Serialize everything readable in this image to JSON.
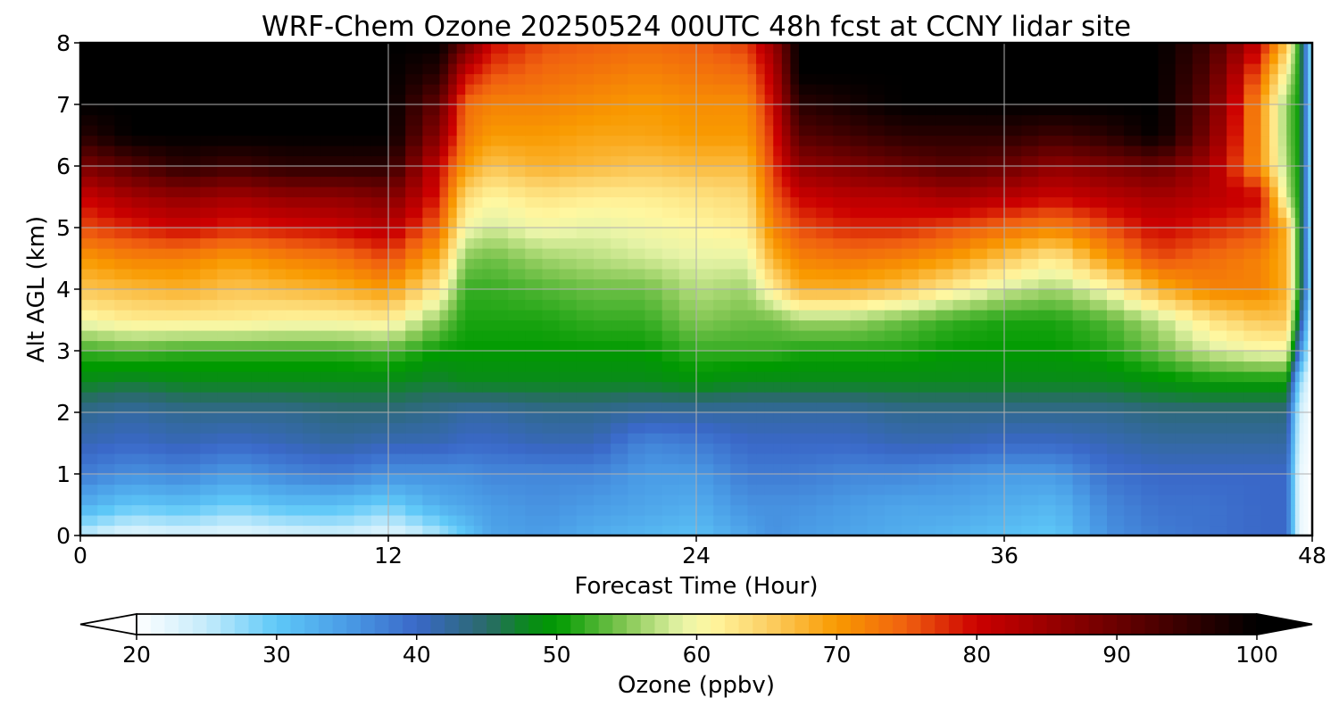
{
  "chart_data": {
    "type": "heatmap",
    "title": "WRF-Chem Ozone  20250524 00UTC 48h fcst at CCNY lidar site",
    "xlabel": "Forecast Time (Hour)",
    "ylabel": "Alt AGL (km)",
    "xlim": [
      0,
      48
    ],
    "ylim": [
      0,
      8
    ],
    "xticks": [
      0,
      12,
      24,
      36,
      48
    ],
    "yticks": [
      0,
      1,
      2,
      3,
      4,
      5,
      6,
      7,
      8
    ],
    "grid": true,
    "colorbar": {
      "label": "Ozone  (ppbv)",
      "orientation": "horizontal",
      "placement": "bottom",
      "range": [
        20,
        100
      ],
      "ticks": [
        20,
        30,
        40,
        50,
        60,
        70,
        80,
        90,
        100
      ],
      "extend": "both",
      "under_color": "#ffffff",
      "over_color": "#000000",
      "color_stops": [
        {
          "value": 20,
          "color": "#ffffff"
        },
        {
          "value": 25,
          "color": "#c4ebfb"
        },
        {
          "value": 30,
          "color": "#5ec8f8"
        },
        {
          "value": 35,
          "color": "#4a9ce6"
        },
        {
          "value": 40,
          "color": "#3a68c8"
        },
        {
          "value": 45,
          "color": "#2a6a6a"
        },
        {
          "value": 48,
          "color": "#0a8a1a"
        },
        {
          "value": 50,
          "color": "#009a00"
        },
        {
          "value": 55,
          "color": "#86c856"
        },
        {
          "value": 59,
          "color": "#e8f4a8"
        },
        {
          "value": 61,
          "color": "#fff7a0"
        },
        {
          "value": 65,
          "color": "#fcd066"
        },
        {
          "value": 70,
          "color": "#f99a00"
        },
        {
          "value": 75,
          "color": "#f06010"
        },
        {
          "value": 80,
          "color": "#cc0000"
        },
        {
          "value": 90,
          "color": "#6a0000"
        },
        {
          "value": 100,
          "color": "#000000"
        }
      ]
    },
    "z_units": "ppbv",
    "x_hours": [
      0,
      2,
      4,
      6,
      8,
      10,
      12,
      14,
      15,
      16,
      18,
      20,
      22,
      24,
      26,
      27,
      28,
      30,
      32,
      34,
      36,
      38,
      40,
      42,
      44,
      46,
      47,
      47.5,
      48
    ],
    "y_km": [
      0,
      0.5,
      1,
      1.5,
      2,
      2.5,
      3,
      3.5,
      4,
      4.5,
      5,
      5.5,
      6,
      6.5,
      7,
      7.5,
      8
    ],
    "z_ppbv": [
      [
        25,
        22,
        23,
        22,
        23,
        24,
        22,
        26,
        30,
        34,
        35,
        33,
        32,
        31,
        34,
        36,
        35,
        34,
        33,
        32,
        31,
        30,
        36,
        38,
        39,
        40,
        40,
        22,
        20
      ],
      [
        33,
        30,
        31,
        29,
        31,
        31,
        29,
        33,
        34,
        35,
        36,
        35,
        34,
        33,
        36,
        36,
        36,
        35,
        34,
        34,
        33,
        32,
        37,
        39,
        39,
        40,
        40,
        22,
        20
      ],
      [
        38,
        36,
        37,
        35,
        37,
        38,
        36,
        36,
        36,
        37,
        37,
        37,
        35,
        35,
        38,
        38,
        38,
        37,
        37,
        36,
        35,
        35,
        39,
        40,
        40,
        40,
        40,
        22,
        20
      ],
      [
        41,
        40,
        41,
        40,
        41,
        42,
        41,
        41,
        40,
        40,
        41,
        41,
        37,
        38,
        40,
        40,
        40,
        40,
        41,
        41,
        40,
        40,
        41,
        42,
        42,
        42,
        42,
        23,
        20
      ],
      [
        43,
        42,
        43,
        43,
        43,
        44,
        44,
        43,
        42,
        42,
        43,
        43,
        42,
        42,
        42,
        42,
        42,
        42,
        43,
        43,
        43,
        43,
        43,
        44,
        44,
        44,
        44,
        24,
        20
      ],
      [
        48,
        47,
        48,
        48,
        48,
        48,
        48,
        47,
        48,
        48,
        48,
        48,
        48,
        49,
        48,
        48,
        48,
        48,
        48,
        48,
        48,
        48,
        48,
        49,
        50,
        50,
        50,
        28,
        20
      ],
      [
        52,
        53,
        52,
        52,
        52,
        52,
        53,
        50,
        50,
        50,
        50,
        50,
        50,
        52,
        52,
        52,
        51,
        51,
        51,
        50,
        50,
        50,
        51,
        54,
        58,
        60,
        60,
        38,
        20
      ],
      [
        60,
        62,
        62,
        62,
        61,
        61,
        62,
        55,
        51,
        51,
        51,
        52,
        52,
        55,
        54,
        54,
        56,
        56,
        54,
        52,
        51,
        51,
        53,
        57,
        63,
        66,
        66,
        45,
        22
      ],
      [
        66,
        67,
        68,
        66,
        67,
        68,
        70,
        62,
        52,
        52,
        53,
        54,
        54,
        57,
        56,
        62,
        68,
        68,
        66,
        62,
        58,
        56,
        60,
        68,
        72,
        72,
        68,
        50,
        25
      ],
      [
        70,
        72,
        72,
        70,
        72,
        73,
        76,
        68,
        55,
        54,
        56,
        57,
        58,
        59,
        59,
        68,
        72,
        73,
        72,
        70,
        66,
        62,
        70,
        76,
        74,
        72,
        68,
        50,
        25
      ],
      [
        76,
        78,
        80,
        78,
        79,
        80,
        82,
        74,
        60,
        58,
        60,
        59,
        60,
        61,
        62,
        72,
        76,
        78,
        78,
        76,
        74,
        72,
        76,
        80,
        78,
        76,
        68,
        50,
        25
      ],
      [
        80,
        84,
        86,
        84,
        86,
        86,
        88,
        78,
        64,
        61,
        63,
        62,
        62,
        63,
        64,
        75,
        80,
        82,
        82,
        84,
        82,
        80,
        82,
        84,
        82,
        80,
        58,
        50,
        25
      ],
      [
        88,
        92,
        96,
        94,
        96,
        96,
        96,
        80,
        70,
        66,
        68,
        67,
        66,
        67,
        67,
        77,
        86,
        88,
        90,
        92,
        90,
        86,
        88,
        90,
        84,
        70,
        56,
        50,
        25
      ],
      [
        96,
        100,
        100,
        100,
        100,
        100,
        100,
        86,
        73,
        70,
        70,
        69,
        69,
        70,
        70,
        78,
        92,
        94,
        96,
        96,
        96,
        94,
        96,
        100,
        88,
        70,
        55,
        50,
        25
      ],
      [
        100,
        100,
        100,
        100,
        100,
        100,
        100,
        90,
        74,
        72,
        72,
        71,
        70,
        71,
        71,
        80,
        96,
        98,
        100,
        100,
        100,
        100,
        100,
        100,
        90,
        70,
        55,
        50,
        25
      ],
      [
        100,
        100,
        100,
        100,
        100,
        100,
        100,
        96,
        80,
        76,
        74,
        73,
        72,
        73,
        74,
        82,
        100,
        100,
        100,
        100,
        100,
        100,
        100,
        100,
        92,
        74,
        60,
        50,
        25
      ],
      [
        100,
        100,
        100,
        100,
        100,
        100,
        100,
        100,
        90,
        80,
        76,
        75,
        74,
        75,
        77,
        85,
        100,
        100,
        100,
        100,
        100,
        100,
        100,
        100,
        94,
        80,
        66,
        50,
        25
      ]
    ]
  }
}
